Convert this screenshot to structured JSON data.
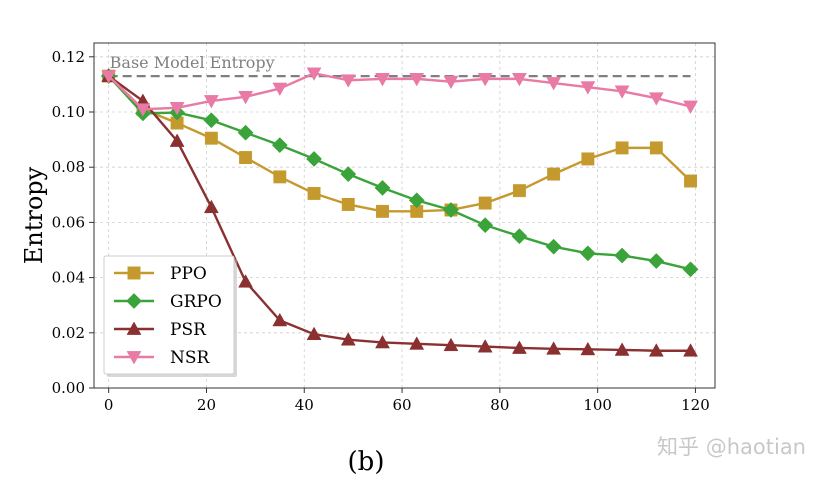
{
  "chart_data": {
    "type": "line",
    "title": "",
    "xlabel": "",
    "ylabel": "Entropy",
    "xlim": [
      -3,
      124
    ],
    "ylim": [
      0.0,
      0.125
    ],
    "x_ticks": [
      "0",
      "20",
      "40",
      "60",
      "80",
      "100",
      "120"
    ],
    "y_ticks": [
      "0.00",
      "0.02",
      "0.04",
      "0.06",
      "0.08",
      "0.10",
      "0.12"
    ],
    "grid": true,
    "legend_position": "lower-left",
    "reference_line": {
      "label": "Base Model Entropy",
      "value": 0.113,
      "color": "#7f7f7f"
    },
    "x": [
      0,
      7,
      14,
      21,
      28,
      35,
      42,
      49,
      56,
      63,
      70,
      77,
      84,
      91,
      98,
      105,
      112,
      119
    ],
    "series": [
      {
        "name": "PPO",
        "color": "#c49a2e",
        "marker": "square",
        "values": [
          0.113,
          0.101,
          0.096,
          0.0905,
          0.0835,
          0.0765,
          0.0705,
          0.0665,
          0.064,
          0.064,
          0.0645,
          0.067,
          0.0715,
          0.0775,
          0.083,
          0.087,
          0.087,
          0.075
        ]
      },
      {
        "name": "GRPO",
        "color": "#3aa33a",
        "marker": "diamond",
        "values": [
          0.113,
          0.0995,
          0.0998,
          0.097,
          0.0925,
          0.088,
          0.083,
          0.0775,
          0.0725,
          0.068,
          0.0645,
          0.059,
          0.055,
          0.0512,
          0.0488,
          0.048,
          0.046,
          0.043
        ]
      },
      {
        "name": "PSR",
        "color": "#8b3030",
        "marker": "triangle-up",
        "values": [
          0.113,
          0.104,
          0.0895,
          0.0655,
          0.0385,
          0.0245,
          0.0195,
          0.0175,
          0.0165,
          0.016,
          0.0155,
          0.015,
          0.0145,
          0.0142,
          0.014,
          0.0138,
          0.0135,
          0.0135
        ]
      },
      {
        "name": "NSR",
        "color": "#e87aa5",
        "marker": "triangle-down",
        "values": [
          0.113,
          0.101,
          0.1015,
          0.104,
          0.1055,
          0.1085,
          0.114,
          0.1115,
          0.112,
          0.112,
          0.111,
          0.112,
          0.112,
          0.1105,
          0.109,
          0.1075,
          0.105,
          0.102
        ]
      }
    ]
  },
  "caption": "(b)",
  "watermark": "知乎 @haotian"
}
